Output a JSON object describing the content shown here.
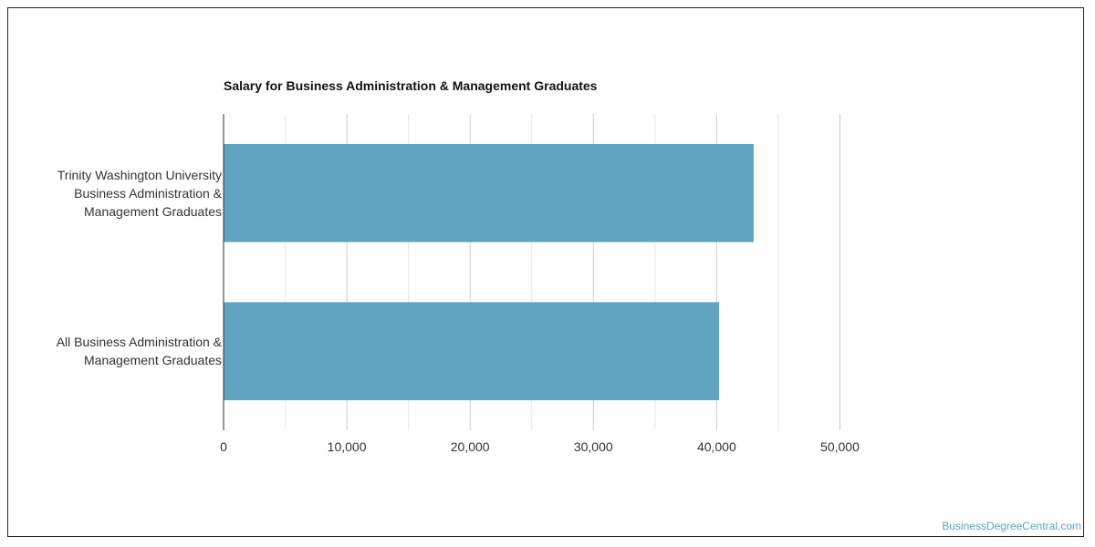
{
  "chart_data": {
    "type": "bar",
    "orientation": "horizontal",
    "title": "Salary for Business Administration & Management Graduates",
    "categories": [
      "Trinity Washington University Business Administration & Management Graduates",
      "All Business Administration & Management Graduates"
    ],
    "category_lines": [
      [
        "Trinity Washington University",
        "Business Administration &",
        "Management Graduates"
      ],
      [
        "All Business Administration &",
        "Management Graduates"
      ]
    ],
    "values": [
      43000,
      40200
    ],
    "xlim": [
      0,
      55000
    ],
    "x_ticks": [
      0,
      10000,
      20000,
      30000,
      40000,
      50000
    ],
    "x_tick_labels": [
      "0",
      "10,000",
      "20,000",
      "30,000",
      "40,000",
      "50,000"
    ],
    "grid": true,
    "bar_color": "#5fa3c0"
  },
  "watermark": "BusinessDegreeCentral.com"
}
